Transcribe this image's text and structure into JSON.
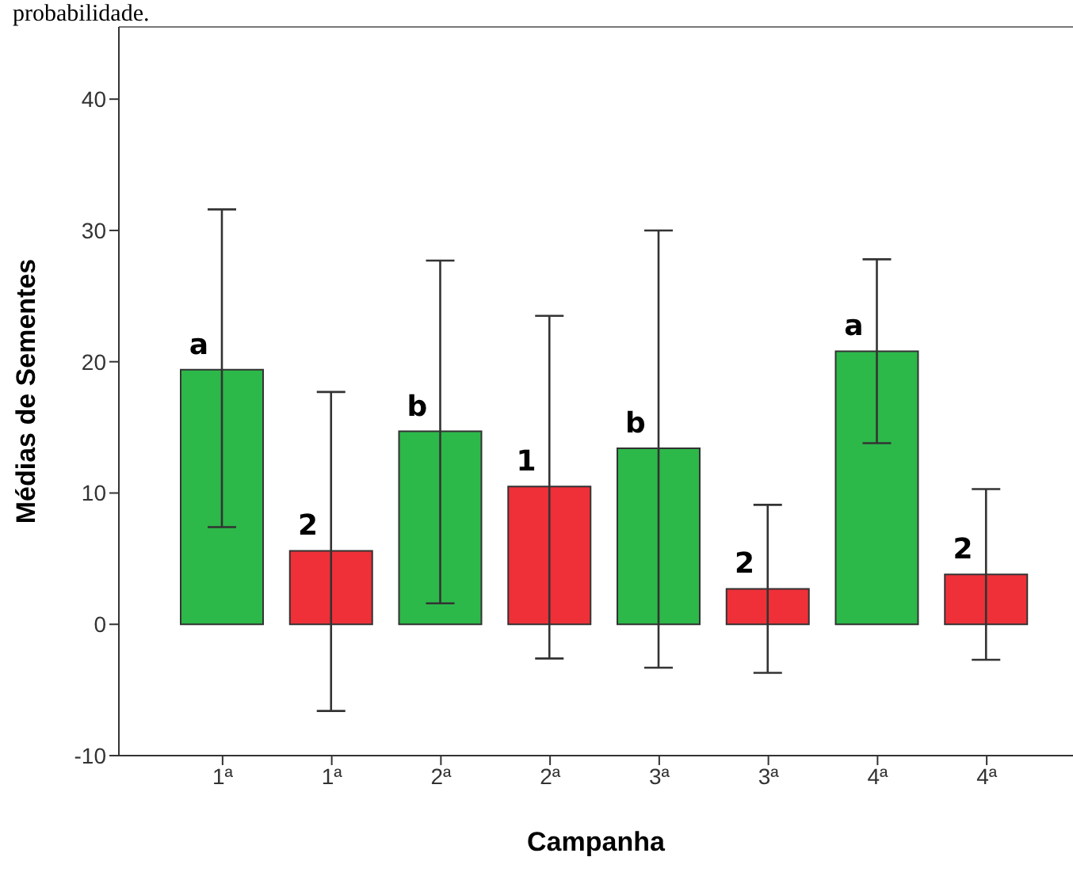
{
  "chart_data": {
    "type": "bar",
    "xlabel": "Campanha",
    "ylabel": "Médias de Sementes",
    "categories": [
      "1ª",
      "1ª",
      "2ª",
      "2ª",
      "3ª",
      "3ª",
      "4ª",
      "4ª"
    ],
    "values": [
      19.4,
      5.6,
      14.7,
      10.5,
      13.4,
      2.7,
      20.8,
      3.8
    ],
    "colors": [
      "#2db84a",
      "#ef3039",
      "#2db84a",
      "#ef3039",
      "#2db84a",
      "#ef3039",
      "#2db84a",
      "#ef3039"
    ],
    "errors": [
      [
        7.4,
        31.6
      ],
      [
        -6.6,
        17.7
      ],
      [
        1.6,
        27.7
      ],
      [
        -2.6,
        23.5
      ],
      [
        -3.3,
        30.0
      ],
      [
        -3.7,
        9.1
      ],
      [
        13.8,
        27.8
      ],
      [
        -2.7,
        10.3
      ]
    ],
    "annotations": [
      "probabilidade.",
      {
        "text": "a",
        "x": "1ª",
        "y": 19.4
      },
      "2",
      {
        "text": "b",
        "x": "2ª",
        "y": 14.7
      },
      {
        "text": "1",
        "x": "2ª",
        "y": 10.5
      },
      {
        "text": "b",
        "x": "3ª",
        "y": 13.4
      },
      {
        "text": "2",
        "x": "3ª",
        "y": 2.7
      },
      {
        "text": "a",
        "x": "4ª",
        "y": 20.8
      },
      "2"
    ],
    "ylim": [
      -10,
      45.5
    ],
    "yticks": [
      -10,
      0,
      10,
      20,
      30,
      40
    ]
  }
}
